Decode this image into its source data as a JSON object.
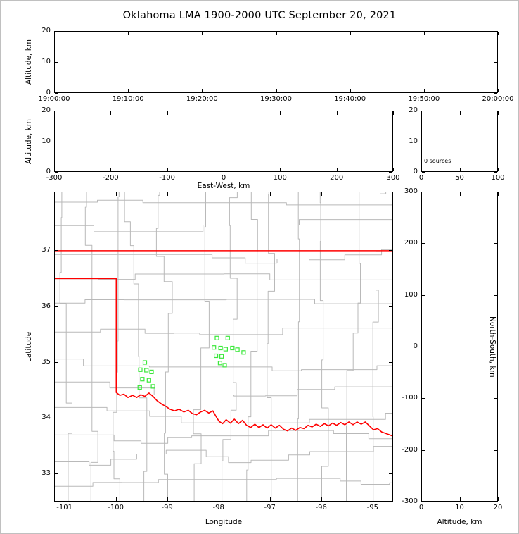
{
  "title": "Oklahoma LMA 1900-2000 UTC September 20, 2021",
  "panels": {
    "time_height": {
      "ylabel": "Altitude, km",
      "ylim": [
        0,
        20
      ],
      "yticks": [
        "0",
        "10",
        "20"
      ],
      "xticks": [
        "19:00:00",
        "19:10:00",
        "19:20:00",
        "19:30:00",
        "19:40:00",
        "19:50:00",
        "20:00:00"
      ]
    },
    "ew_height": {
      "ylabel": "Altitude, km",
      "xlabel": "East-West, km",
      "ylim": [
        0,
        20
      ],
      "xlim": [
        -300,
        300
      ],
      "yticks": [
        "0",
        "10",
        "20"
      ],
      "xticks": [
        "-300",
        "-200",
        "-100",
        "0",
        "100",
        "200",
        "300"
      ]
    },
    "histogram": {
      "annotation": "0 sources",
      "ylim": [
        0,
        20
      ],
      "xlim": [
        0,
        100
      ],
      "yticks": [
        "0",
        "10",
        "20"
      ],
      "xticks": [
        "0",
        "50",
        "100"
      ]
    },
    "map": {
      "ylabel": "Latitude",
      "xlabel": "Longitude",
      "yticks": [
        "33",
        "34",
        "35",
        "36",
        "37"
      ],
      "xticks": [
        "-101",
        "-100",
        "-99",
        "-98",
        "-97",
        "-96",
        "-95"
      ]
    },
    "ns_height": {
      "ylabel_right": "North-South, km",
      "xlabel": "Altitude, km",
      "ylim": [
        -300,
        300
      ],
      "xlim": [
        0,
        20
      ],
      "yticks": [
        "300",
        "200",
        "100",
        "0",
        "-100",
        "-200",
        "-300"
      ],
      "xticks": [
        "0",
        "10",
        "20"
      ]
    }
  },
  "chart_data": {
    "type": "scatter",
    "title": "Oklahoma LMA 1900-2000 UTC September 20, 2021",
    "time_axis_range_utc": [
      "19:00:00",
      "20:00:00"
    ],
    "altitude_range_km": [
      0,
      20
    ],
    "source_count": 0,
    "lightning_sources": [],
    "map_extent": {
      "lon": [
        -101.2,
        -94.6
      ],
      "lat": [
        32.5,
        38.05
      ]
    },
    "station_markers": {
      "marker": "open-square",
      "color": "#3ce83c",
      "points": [
        [
          -99.44,
          34.99
        ],
        [
          -99.53,
          34.86
        ],
        [
          -99.41,
          34.85
        ],
        [
          -99.31,
          34.82
        ],
        [
          -99.49,
          34.69
        ],
        [
          -99.36,
          34.67
        ],
        [
          -99.54,
          34.54
        ],
        [
          -99.28,
          34.56
        ],
        [
          -98.03,
          35.43
        ],
        [
          -97.82,
          35.43
        ],
        [
          -98.09,
          35.26
        ],
        [
          -97.96,
          35.25
        ],
        [
          -97.86,
          35.23
        ],
        [
          -97.73,
          35.25
        ],
        [
          -97.63,
          35.22
        ],
        [
          -97.51,
          35.17
        ],
        [
          -98.05,
          35.11
        ],
        [
          -97.94,
          35.1
        ],
        [
          -97.97,
          34.98
        ],
        [
          -97.88,
          34.94
        ]
      ]
    },
    "state_border": {
      "color": "#ff0000",
      "north_border_lat": 37.0,
      "panhandle_south_lat": 36.5,
      "west_border_lon": -100.0,
      "red_river_boundary": [
        [
          -100.0,
          34.45
        ],
        [
          -99.93,
          34.4
        ],
        [
          -99.85,
          34.42
        ],
        [
          -99.77,
          34.36
        ],
        [
          -99.68,
          34.4
        ],
        [
          -99.6,
          34.36
        ],
        [
          -99.52,
          34.41
        ],
        [
          -99.44,
          34.38
        ],
        [
          -99.36,
          34.44
        ],
        [
          -99.28,
          34.38
        ],
        [
          -99.2,
          34.3
        ],
        [
          -99.11,
          34.24
        ],
        [
          -99.03,
          34.2
        ],
        [
          -98.95,
          34.15
        ],
        [
          -98.86,
          34.12
        ],
        [
          -98.77,
          34.15
        ],
        [
          -98.68,
          34.1
        ],
        [
          -98.59,
          34.13
        ],
        [
          -98.51,
          34.07
        ],
        [
          -98.43,
          34.05
        ],
        [
          -98.35,
          34.1
        ],
        [
          -98.27,
          34.13
        ],
        [
          -98.19,
          34.08
        ],
        [
          -98.11,
          34.12
        ],
        [
          -98.05,
          34.02
        ],
        [
          -97.99,
          33.93
        ],
        [
          -97.92,
          33.89
        ],
        [
          -97.85,
          33.96
        ],
        [
          -97.77,
          33.9
        ],
        [
          -97.69,
          33.97
        ],
        [
          -97.61,
          33.89
        ],
        [
          -97.53,
          33.95
        ],
        [
          -97.45,
          33.86
        ],
        [
          -97.37,
          33.82
        ],
        [
          -97.29,
          33.88
        ],
        [
          -97.21,
          33.82
        ],
        [
          -97.13,
          33.87
        ],
        [
          -97.05,
          33.81
        ],
        [
          -96.97,
          33.87
        ],
        [
          -96.89,
          33.81
        ],
        [
          -96.81,
          33.86
        ],
        [
          -96.73,
          33.79
        ],
        [
          -96.65,
          33.76
        ],
        [
          -96.57,
          33.81
        ],
        [
          -96.49,
          33.77
        ],
        [
          -96.41,
          33.82
        ],
        [
          -96.33,
          33.8
        ],
        [
          -96.25,
          33.86
        ],
        [
          -96.17,
          33.83
        ],
        [
          -96.09,
          33.88
        ],
        [
          -96.01,
          33.84
        ],
        [
          -95.93,
          33.89
        ],
        [
          -95.85,
          33.85
        ],
        [
          -95.77,
          33.9
        ],
        [
          -95.69,
          33.86
        ],
        [
          -95.61,
          33.91
        ],
        [
          -95.53,
          33.87
        ],
        [
          -95.45,
          33.92
        ],
        [
          -95.37,
          33.87
        ],
        [
          -95.29,
          33.92
        ],
        [
          -95.21,
          33.88
        ],
        [
          -95.13,
          33.92
        ],
        [
          -95.05,
          33.85
        ],
        [
          -94.97,
          33.78
        ],
        [
          -94.89,
          33.8
        ],
        [
          -94.81,
          33.74
        ],
        [
          -94.72,
          33.71
        ],
        [
          -94.6,
          33.67
        ]
      ]
    },
    "county_line_color": "#b9b9b9"
  }
}
